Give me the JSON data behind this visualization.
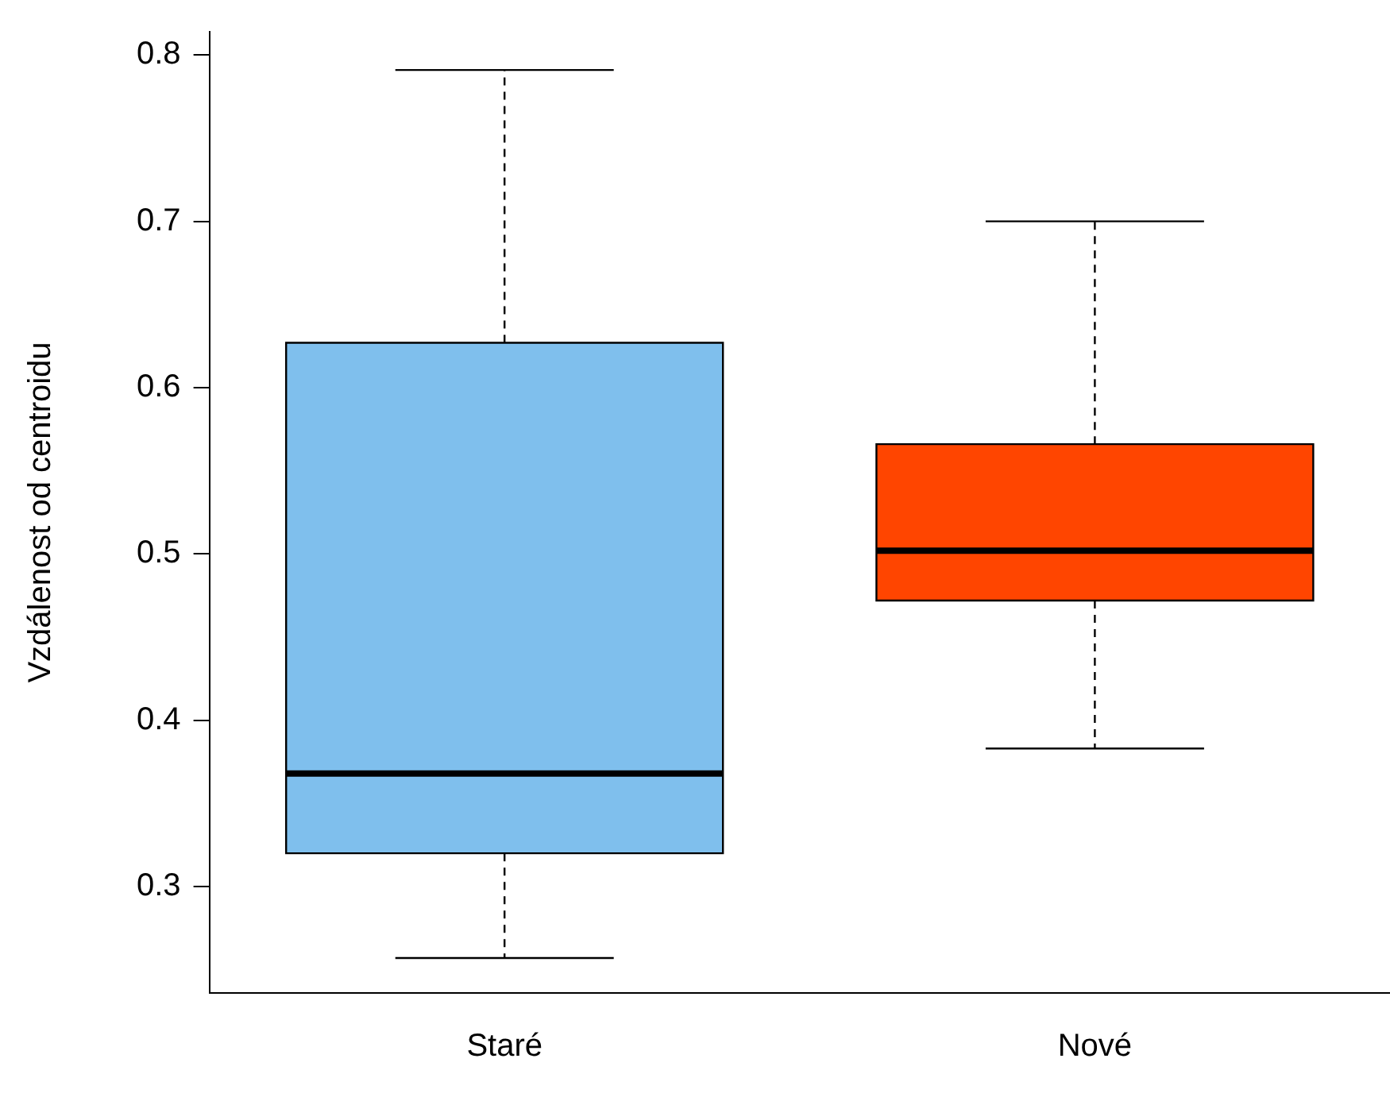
{
  "chart_data": {
    "type": "box",
    "ylabel": "Vzdálenost od centroidu",
    "categories": [
      "Staré",
      "Nové"
    ],
    "colors": [
      "#7fbfed",
      "#ff4500"
    ],
    "boxes": [
      {
        "low": 0.257,
        "q1": 0.32,
        "median": 0.368,
        "q3": 0.627,
        "high": 0.791
      },
      {
        "low": 0.383,
        "q1": 0.472,
        "median": 0.502,
        "q3": 0.566,
        "high": 0.7
      }
    ],
    "ylim": [
      0.236,
      0.814
    ],
    "yticks": [
      0.3,
      0.4,
      0.5,
      0.6,
      0.7,
      0.8
    ],
    "grid": false,
    "legend": false
  }
}
